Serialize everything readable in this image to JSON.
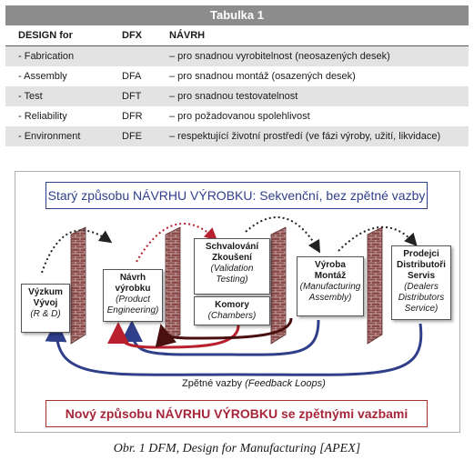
{
  "table": {
    "title": "Tabulka 1",
    "headers": [
      "DESIGN for",
      "DFX",
      "NÁVRH"
    ],
    "rows": [
      [
        "- Fabrication",
        "",
        "– pro snadnou vyrobitelnost (neosazených desek)"
      ],
      [
        "- Assembly",
        "DFA",
        "– pro snadnou montáž (osazených desek)"
      ],
      [
        "- Test",
        "DFT",
        "– pro snadnou testovatelnost"
      ],
      [
        "- Reliability",
        "DFR",
        "– pro požadovanou spolehlivost"
      ],
      [
        "- Environment",
        "DFE",
        "– respektující životní prostředí (ve fázi výroby, užití, likvidace)"
      ]
    ]
  },
  "diagram": {
    "top_title": "Starý způsobu NÁVRHU VÝROBKU: Sekvenční, bez zpětné vazby",
    "bottom_title": "Nový způsobu NÁVRHU VÝROBKU se zpětnými vazbami",
    "feedback_label": "Zpětné vazby",
    "feedback_label_en": "(Feedback Loops)",
    "nodes": {
      "research": {
        "title": "Výzkum\nVývoj",
        "subtitle": "(R & D)"
      },
      "design": {
        "title": "Návrh\nvýrobku",
        "subtitle": "(Product\nEngineering)"
      },
      "validation": {
        "title": "Schvalování\nZkoušení",
        "subtitle": "(Validation\nTesting)"
      },
      "chambers": {
        "title": "Komory",
        "subtitle": "(Chambers)"
      },
      "manufacturing": {
        "title": "Výroba\nMontáž",
        "subtitle": "(Manufacturing\nAssembly)"
      },
      "distribution": {
        "title": "Prodejci\nDistributoři\nServis",
        "subtitle": "(Dealers\nDistributors\nService)"
      }
    },
    "colors": {
      "blue": "#2f3f8a",
      "red": "#b8202e",
      "darkred": "#6b1a1a",
      "brick": "#8a4a4a"
    }
  },
  "caption": "Obr. 1  DFM, Design for Manufacturing [APEX]"
}
